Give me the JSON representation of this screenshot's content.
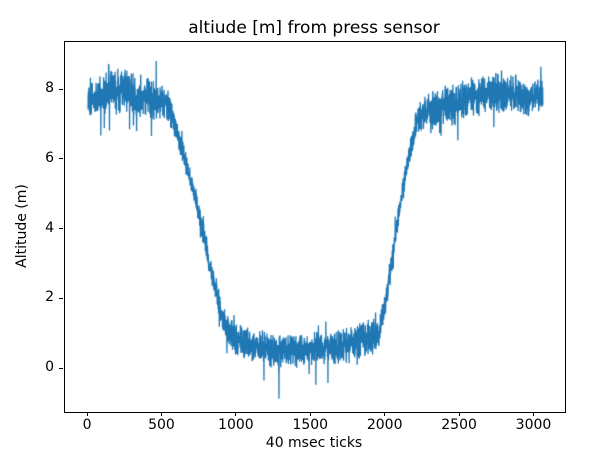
{
  "chart_data": {
    "type": "line",
    "title": "altiude [m] from press sensor",
    "xlabel": "40 msec ticks",
    "ylabel": "Altitude (m)",
    "line_color": "#1f77b4",
    "axes_color": "#000000",
    "background_color": "#ffffff",
    "grid": false,
    "legend": false,
    "xlim": [
      -155,
      3205
    ],
    "ylim": [
      -1.23,
      9.38
    ],
    "xticks": [
      0,
      500,
      1000,
      1500,
      2000,
      2500,
      3000
    ],
    "yticks": [
      0,
      2,
      4,
      6,
      8
    ],
    "x_max": 3057,
    "step": 1,
    "noise_seed": 1337,
    "noise_spike_prob": 0.045,
    "noise_spike_scale": 2.0,
    "envelope": [
      [
        0,
        7.85,
        0.4
      ],
      [
        60,
        7.75,
        0.42
      ],
      [
        130,
        7.9,
        0.45
      ],
      [
        210,
        8.0,
        0.46
      ],
      [
        290,
        7.9,
        0.45
      ],
      [
        360,
        7.8,
        0.44
      ],
      [
        430,
        7.75,
        0.42
      ],
      [
        490,
        7.8,
        0.4
      ],
      [
        540,
        7.55,
        0.32
      ],
      [
        600,
        6.8,
        0.26
      ],
      [
        660,
        5.9,
        0.24
      ],
      [
        720,
        4.9,
        0.24
      ],
      [
        780,
        3.8,
        0.24
      ],
      [
        840,
        2.6,
        0.25
      ],
      [
        900,
        1.55,
        0.27
      ],
      [
        950,
        1.05,
        0.3
      ],
      [
        1000,
        0.85,
        0.33
      ],
      [
        1080,
        0.75,
        0.34
      ],
      [
        1160,
        0.65,
        0.35
      ],
      [
        1240,
        0.55,
        0.35
      ],
      [
        1320,
        0.58,
        0.34
      ],
      [
        1400,
        0.55,
        0.35
      ],
      [
        1480,
        0.58,
        0.34
      ],
      [
        1560,
        0.62,
        0.33
      ],
      [
        1640,
        0.62,
        0.34
      ],
      [
        1720,
        0.68,
        0.34
      ],
      [
        1800,
        0.78,
        0.35
      ],
      [
        1880,
        0.88,
        0.36
      ],
      [
        1950,
        1.05,
        0.32
      ],
      [
        2000,
        1.9,
        0.27
      ],
      [
        2050,
        3.4,
        0.25
      ],
      [
        2100,
        4.8,
        0.24
      ],
      [
        2150,
        6.0,
        0.25
      ],
      [
        2200,
        6.95,
        0.28
      ],
      [
        2240,
        7.3,
        0.33
      ],
      [
        2320,
        7.45,
        0.4
      ],
      [
        2420,
        7.55,
        0.42
      ],
      [
        2520,
        7.7,
        0.42
      ],
      [
        2620,
        7.85,
        0.41
      ],
      [
        2720,
        7.95,
        0.41
      ],
      [
        2820,
        7.9,
        0.4
      ],
      [
        2890,
        7.95,
        0.38
      ],
      [
        2950,
        7.7,
        0.37
      ],
      [
        3005,
        7.85,
        0.36
      ],
      [
        3057,
        7.9,
        0.34
      ]
    ],
    "spikes": [
      {
        "x": 1283,
        "y": -0.85
      },
      {
        "x": 1182,
        "y": -0.33
      },
      {
        "x": 1531,
        "y": -0.45
      },
      {
        "x": 1612,
        "y": -0.4
      }
    ]
  }
}
